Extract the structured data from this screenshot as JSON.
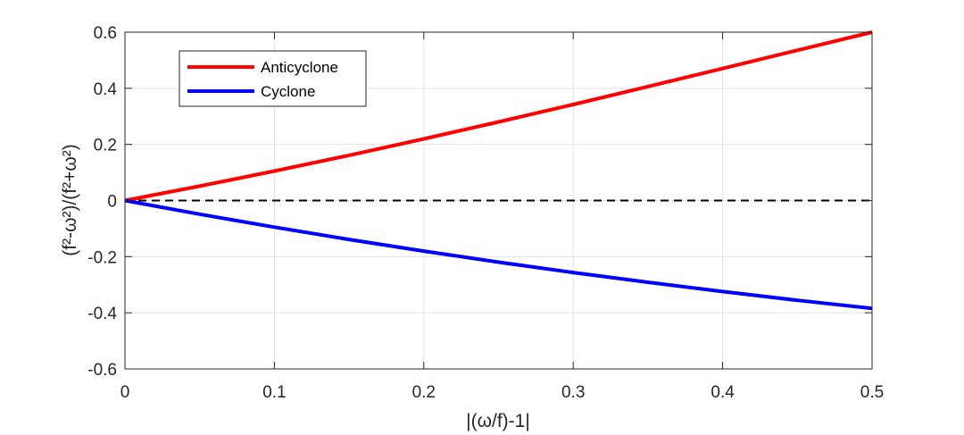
{
  "chart_data": {
    "type": "line",
    "title": "",
    "xlabel": "|(ω/f)-1|",
    "ylabel": "(f²-ω²)/(f²+ω²)",
    "xlim": [
      0,
      0.5
    ],
    "ylim": [
      -0.6,
      0.6
    ],
    "grid": true,
    "legend_position": "top-left",
    "xticks": [
      "0",
      "0.1",
      "0.2",
      "0.3",
      "0.4",
      "0.5"
    ],
    "xtick_values": [
      0,
      0.1,
      0.2,
      0.3,
      0.4,
      0.5
    ],
    "yticks": [
      "0.6",
      "0.4",
      "0.2",
      "0",
      "-0.2",
      "-0.4",
      "-0.6"
    ],
    "ytick_values": [
      0.6,
      0.4,
      0.2,
      0,
      -0.2,
      -0.4,
      -0.6
    ],
    "x": [
      0,
      0.05,
      0.1,
      0.15,
      0.2,
      0.25,
      0.3,
      0.35,
      0.4,
      0.45,
      0.5
    ],
    "series": [
      {
        "name": "Anticyclone",
        "color": "#ff0000",
        "values": [
          0,
          0.0512,
          0.105,
          0.1611,
          0.2195,
          0.28,
          0.3423,
          0.406,
          0.4706,
          0.5355,
          0.6
        ]
      },
      {
        "name": "Cyclone",
        "color": "#0000ff",
        "values": [
          0,
          -0.0488,
          -0.095,
          -0.1389,
          -0.1803,
          -0.2195,
          -0.2565,
          -0.2914,
          -0.3243,
          -0.3554,
          -0.3846
        ]
      }
    ],
    "reference_line": {
      "y": 0,
      "style": "dashed",
      "color": "#000000"
    }
  }
}
